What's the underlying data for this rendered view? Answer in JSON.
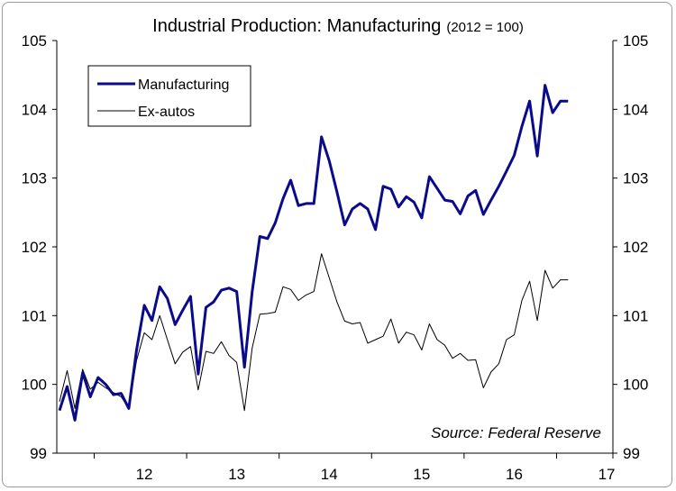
{
  "chart_data": {
    "type": "line",
    "title": "Industrial Production: Manufacturing",
    "subtitle": "(2012 = 100)",
    "xlabel": "",
    "ylabel": "",
    "ylim": [
      99,
      105
    ],
    "yticks": [
      "99",
      "100",
      "101",
      "102",
      "103",
      "104",
      "105"
    ],
    "xtick_labels": [
      "12",
      "13",
      "14",
      "15",
      "16",
      "17"
    ],
    "source": "Source: Federal Reserve",
    "legend_position": "top-left",
    "grid": false,
    "x": [
      "2011-08",
      "2011-09",
      "2011-10",
      "2011-11",
      "2011-12",
      "2012-01",
      "2012-02",
      "2012-03",
      "2012-04",
      "2012-05",
      "2012-06",
      "2012-07",
      "2012-08",
      "2012-09",
      "2012-10",
      "2012-11",
      "2012-12",
      "2013-01",
      "2013-02",
      "2013-03",
      "2013-04",
      "2013-05",
      "2013-06",
      "2013-07",
      "2013-08",
      "2013-09",
      "2013-10",
      "2013-11",
      "2013-12",
      "2014-01",
      "2014-02",
      "2014-03",
      "2014-04",
      "2014-05",
      "2014-06",
      "2014-07",
      "2014-08",
      "2014-09",
      "2014-10",
      "2014-11",
      "2014-12",
      "2015-01",
      "2015-02",
      "2015-03",
      "2015-04",
      "2015-05",
      "2015-06",
      "2015-07",
      "2015-08",
      "2015-09",
      "2015-10",
      "2015-11",
      "2015-12",
      "2016-01",
      "2016-02",
      "2016-03",
      "2016-04",
      "2016-05",
      "2016-06",
      "2016-07",
      "2016-08",
      "2016-09",
      "2016-10",
      "2016-11",
      "2016-12",
      "2017-01",
      "2017-02"
    ],
    "series": [
      {
        "name": "Manufacturing",
        "color": "#0a0a8a",
        "values": [
          99.62,
          99.97,
          99.48,
          100.17,
          99.82,
          100.1,
          100.0,
          99.85,
          99.87,
          99.65,
          100.5,
          101.15,
          100.93,
          101.42,
          101.25,
          100.87,
          101.08,
          101.28,
          100.15,
          101.12,
          101.2,
          101.37,
          101.4,
          101.35,
          100.25,
          101.35,
          102.15,
          102.12,
          102.35,
          102.7,
          102.97,
          102.6,
          102.63,
          102.63,
          103.6,
          103.25,
          102.8,
          102.32,
          102.55,
          102.63,
          102.55,
          102.25,
          102.88,
          102.84,
          102.58,
          102.73,
          102.65,
          102.42,
          103.02,
          102.85,
          102.68,
          102.66,
          102.48,
          102.74,
          102.82,
          102.47,
          102.68,
          102.88,
          103.1,
          103.33,
          103.75,
          104.12,
          103.32,
          104.35,
          103.95,
          104.12,
          104.12
        ]
      },
      {
        "name": "Ex-autos",
        "color": "#000000",
        "values": [
          99.75,
          100.2,
          99.65,
          100.22,
          99.93,
          100.03,
          99.95,
          99.88,
          99.82,
          99.65,
          100.35,
          100.75,
          100.65,
          101.0,
          100.65,
          100.3,
          100.47,
          100.55,
          99.92,
          100.48,
          100.45,
          100.62,
          100.42,
          100.32,
          99.62,
          100.53,
          101.02,
          101.03,
          101.05,
          101.42,
          101.38,
          101.22,
          101.3,
          101.35,
          101.9,
          101.55,
          101.2,
          100.92,
          100.88,
          100.9,
          100.6,
          100.65,
          100.7,
          100.95,
          100.6,
          100.76,
          100.72,
          100.5,
          100.88,
          100.65,
          100.57,
          100.38,
          100.45,
          100.35,
          100.36,
          99.95,
          100.18,
          100.3,
          100.65,
          100.72,
          101.22,
          101.5,
          100.93,
          101.66,
          101.4,
          101.52,
          101.52
        ]
      }
    ]
  }
}
